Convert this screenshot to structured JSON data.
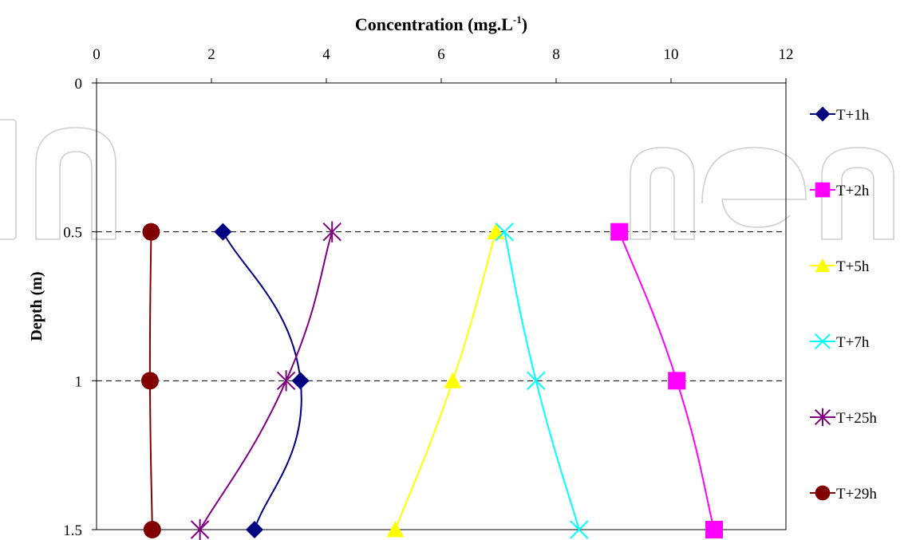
{
  "chart_data": {
    "type": "scatter",
    "xlabel": "Concentration (mg.L",
    "xlabel_sup": "-1",
    "xlabel_end": ")",
    "ylabel": "Depth (m)",
    "xlim": [
      0,
      12
    ],
    "ylim": [
      0,
      1.5
    ],
    "y_inverted": true,
    "x_axis_position": "top",
    "xticks": [
      "0",
      "2",
      "4",
      "6",
      "8",
      "10",
      "12"
    ],
    "yticks": [
      "0",
      "0.5",
      "1",
      "1.5"
    ],
    "ytick_values": [
      0,
      0.5,
      1,
      1.5
    ],
    "xtick_values": [
      0,
      2,
      4,
      6,
      8,
      10,
      12
    ],
    "grid": "dashed horizontal at 0.5 and 1",
    "legend_position": "right",
    "series": [
      {
        "name": "T+1h",
        "color": "#000080",
        "marker": "diamond",
        "points": [
          [
            2.2,
            0.5
          ],
          [
            3.55,
            1.0
          ],
          [
            2.75,
            1.5
          ]
        ]
      },
      {
        "name": "T+2h",
        "color": "#FF00FF",
        "marker": "square",
        "points": [
          [
            9.1,
            0.5
          ],
          [
            10.1,
            1.0
          ],
          [
            10.75,
            1.5
          ]
        ]
      },
      {
        "name": "T+5h",
        "color": "#FFFF00",
        "marker": "triangle",
        "points": [
          [
            6.95,
            0.5
          ],
          [
            6.2,
            1.0
          ],
          [
            5.2,
            1.5
          ]
        ]
      },
      {
        "name": "T+7h",
        "color": "#00FFFF",
        "marker": "x",
        "points": [
          [
            7.1,
            0.5
          ],
          [
            7.65,
            1.0
          ],
          [
            8.4,
            1.5
          ]
        ]
      },
      {
        "name": "T+25h",
        "color": "#800080",
        "marker": "star",
        "points": [
          [
            4.1,
            0.5
          ],
          [
            3.3,
            1.0
          ],
          [
            1.8,
            1.5
          ]
        ]
      },
      {
        "name": "T+29h",
        "color": "#800000",
        "marker": "circle",
        "points": [
          [
            0.95,
            0.5
          ],
          [
            0.93,
            1.0
          ],
          [
            0.97,
            1.5
          ]
        ]
      }
    ]
  }
}
